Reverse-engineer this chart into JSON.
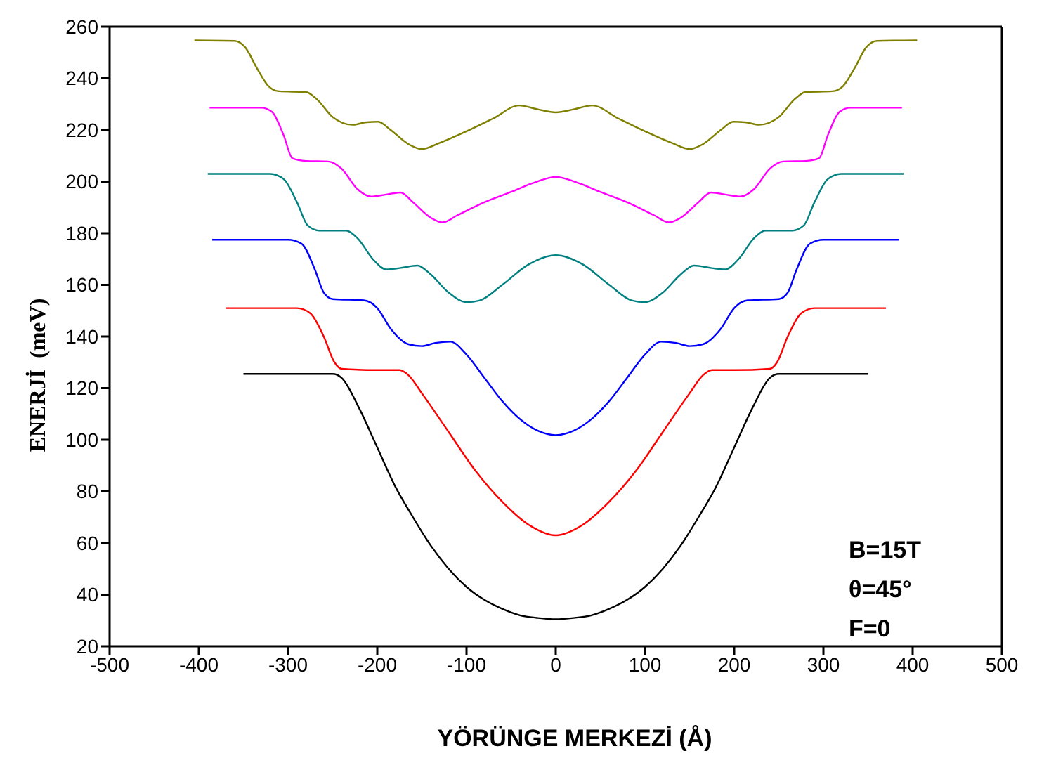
{
  "chart_data": {
    "type": "line",
    "xlabel": "YÖRÜNGE MERKEZİ (Å)",
    "ylabel": "ENERJİ  (meV)",
    "xlim": [
      -500,
      500
    ],
    "xticks": [
      -500,
      -400,
      -300,
      -200,
      -100,
      0,
      100,
      200,
      300,
      400,
      500
    ],
    "ylim": [
      20,
      260
    ],
    "yticks": [
      20,
      40,
      60,
      80,
      100,
      120,
      140,
      160,
      180,
      200,
      220,
      240,
      260
    ],
    "grid": false,
    "legend": false,
    "marker": "none",
    "line_style": "solid",
    "annotations": [
      "B=15T",
      "θ=45°",
      "F=0"
    ],
    "series": [
      {
        "color": "#000000",
        "x": [
          -350,
          -250,
          -240,
          -220,
          -200,
          -180,
          -160,
          -140,
          -120,
          -100,
          -80,
          -60,
          -40,
          -20,
          0,
          20,
          40,
          60,
          80,
          100,
          120,
          140,
          160,
          180,
          200,
          220,
          240,
          250,
          350
        ],
        "values": [
          125.5,
          125.5,
          124,
          112,
          97,
          82,
          70,
          59,
          50,
          43,
          38,
          34.5,
          32,
          31,
          30.5,
          31,
          32,
          34.5,
          38,
          43,
          50,
          59,
          70,
          82,
          97,
          112,
          124,
          125.5,
          125.5
        ]
      },
      {
        "color": "#ff0000",
        "x": [
          -370,
          -290,
          -275,
          -260,
          -248,
          -240,
          -200,
          -175,
          -165,
          -150,
          -120,
          -90,
          -60,
          -30,
          0,
          30,
          60,
          90,
          120,
          150,
          165,
          175,
          200,
          240,
          248,
          260,
          275,
          290,
          370
        ],
        "values": [
          151,
          151,
          149,
          140,
          130,
          127.5,
          127,
          127,
          125,
          118,
          103,
          88,
          76,
          67,
          63,
          67,
          76,
          88,
          103,
          118,
          125,
          127,
          127,
          127.5,
          130,
          140,
          149,
          151,
          151
        ]
      },
      {
        "color": "#0000ff",
        "x": [
          -385,
          -300,
          -285,
          -270,
          -260,
          -250,
          -215,
          -200,
          -185,
          -165,
          -150,
          -135,
          -118,
          -100,
          -80,
          -60,
          -40,
          -20,
          0,
          20,
          40,
          60,
          80,
          100,
          118,
          135,
          150,
          165,
          185,
          200,
          215,
          250,
          260,
          270,
          285,
          300,
          385
        ],
        "values": [
          177.5,
          177.5,
          176,
          166,
          157,
          154.5,
          154,
          151,
          143,
          137,
          136.3,
          137.5,
          138,
          133,
          124,
          115,
          108,
          103.5,
          101.8,
          103.5,
          108,
          115,
          124,
          133,
          138,
          137.5,
          136.3,
          137,
          143,
          151,
          154,
          154.5,
          157,
          166,
          176,
          177.5,
          177.5
        ]
      },
      {
        "color": "#008080",
        "x": [
          -390,
          -320,
          -305,
          -290,
          -278,
          -265,
          -235,
          -222,
          -205,
          -190,
          -175,
          -155,
          -140,
          -120,
          -100,
          -85,
          -60,
          -30,
          0,
          30,
          60,
          85,
          100,
          120,
          140,
          155,
          175,
          190,
          205,
          222,
          235,
          265,
          278,
          290,
          305,
          320,
          390
        ],
        "values": [
          203,
          203,
          201,
          192,
          183,
          181,
          181,
          178,
          170,
          166,
          166.5,
          167.5,
          164,
          157,
          153.3,
          154,
          160,
          168,
          171.5,
          168,
          160,
          154,
          153.3,
          157,
          164,
          167.5,
          166.5,
          166,
          170,
          178,
          181,
          181,
          183,
          192,
          201,
          203,
          203
        ]
      },
      {
        "color": "#ff00ff",
        "x": [
          -388,
          -330,
          -318,
          -305,
          -295,
          -280,
          -255,
          -240,
          -222,
          -207,
          -190,
          -174,
          -160,
          -140,
          -127,
          -110,
          -80,
          -50,
          -25,
          0,
          25,
          50,
          80,
          110,
          127,
          140,
          160,
          174,
          190,
          207,
          222,
          240,
          255,
          280,
          295,
          305,
          318,
          330,
          388
        ],
        "values": [
          228.6,
          228.6,
          227,
          218,
          209,
          208,
          207.8,
          205,
          197,
          194.2,
          195,
          195.8,
          192,
          186,
          184.2,
          187,
          192,
          196,
          199.5,
          201.8,
          199.5,
          196,
          192,
          187,
          184.2,
          186,
          192,
          195.8,
          195,
          194.2,
          197,
          205,
          207.8,
          208,
          209,
          218,
          227,
          228.6,
          228.6
        ]
      },
      {
        "color": "#808000",
        "x": [
          -405,
          -360,
          -348,
          -335,
          -322,
          -310,
          -280,
          -268,
          -250,
          -228,
          -212,
          -199,
          -185,
          -165,
          -150,
          -130,
          -100,
          -70,
          -41,
          -20,
          0,
          20,
          41,
          70,
          100,
          130,
          150,
          165,
          185,
          199,
          212,
          228,
          250,
          268,
          280,
          310,
          322,
          335,
          348,
          360,
          405
        ],
        "values": [
          254.7,
          254.5,
          252,
          244,
          237,
          235,
          234.7,
          232,
          225,
          222,
          223,
          223.2,
          220,
          214.5,
          212.6,
          215,
          219.5,
          224.5,
          229.5,
          228,
          226.8,
          228,
          229.5,
          224.5,
          219.5,
          215,
          212.6,
          214.5,
          220,
          223.2,
          223,
          222,
          225,
          232,
          234.7,
          235,
          237,
          244,
          252,
          254.5,
          254.7
        ]
      }
    ]
  }
}
